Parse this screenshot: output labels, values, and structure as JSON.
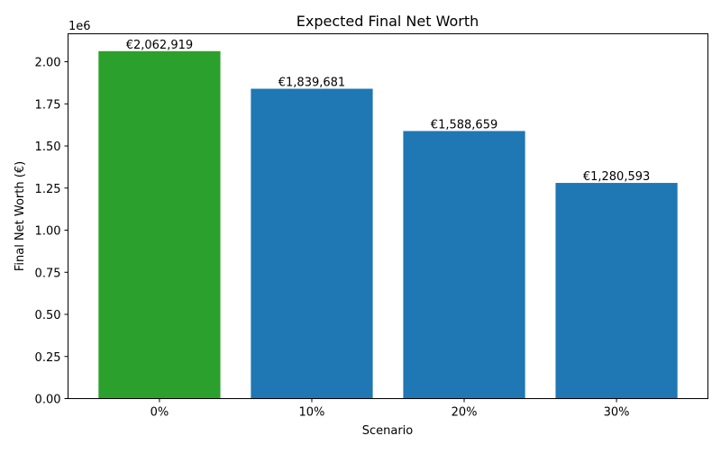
{
  "chart_data": {
    "type": "bar",
    "title": "Expected Final Net Worth",
    "xlabel": "Scenario",
    "ylabel": "Final Net Worth (€)",
    "y_offset_label": "1e6",
    "categories": [
      "0%",
      "10%",
      "20%",
      "30%"
    ],
    "values": [
      2062919,
      1839681,
      1588659,
      1280593
    ],
    "data_labels": [
      "€2,062,919",
      "€1,839,681",
      "€1,588,659",
      "€1,280,593"
    ],
    "bar_colors": [
      "#2ca02c",
      "#1f77b4",
      "#1f77b4",
      "#1f77b4"
    ],
    "ylim": [
      0,
      2166065
    ],
    "yticks": [
      0,
      250000,
      500000,
      750000,
      1000000,
      1250000,
      1500000,
      1750000,
      2000000
    ],
    "ytick_labels": [
      "0.00",
      "0.25",
      "0.50",
      "0.75",
      "1.00",
      "1.25",
      "1.50",
      "1.75",
      "2.00"
    ],
    "grid": false,
    "legend": "none"
  }
}
